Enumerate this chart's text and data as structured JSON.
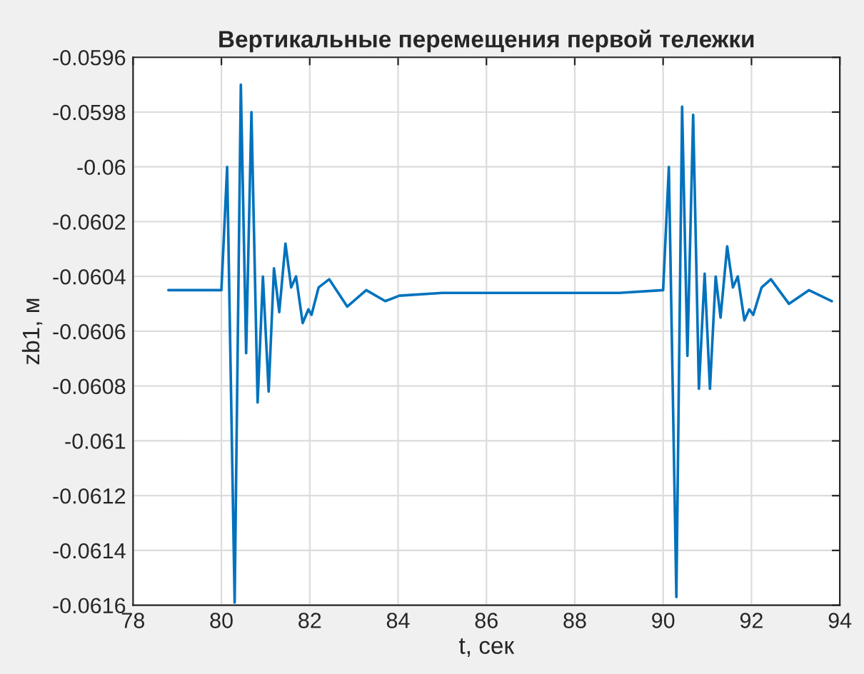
{
  "chart_data": {
    "type": "line",
    "title": "Вертикальные перемещения первой тележки",
    "xlabel": "t, сек",
    "ylabel": "zb1, м",
    "xlim": [
      78,
      94
    ],
    "xticks": [
      78,
      80,
      82,
      84,
      86,
      88,
      90,
      92,
      94
    ],
    "ylim": [
      -0.0616,
      -0.0596
    ],
    "yticks": [
      -0.0616,
      -0.0614,
      -0.0612,
      -0.061,
      -0.0608,
      -0.0606,
      -0.0604,
      -0.0602,
      -0.06,
      -0.0598,
      -0.0596
    ],
    "grid": true,
    "marker": "none",
    "line_style": "solid",
    "series": [
      {
        "color": "#0072bd",
        "x": [
          78.8,
          80.0,
          80.13,
          80.3,
          80.44,
          80.56,
          80.68,
          80.82,
          80.94,
          81.07,
          81.19,
          81.31,
          81.45,
          81.58,
          81.69,
          81.84,
          81.97,
          82.04,
          82.2,
          82.44,
          82.85,
          83.28,
          83.71,
          84.03,
          85.0,
          86.0,
          87.0,
          88.0,
          89.0,
          90.0,
          90.13,
          90.3,
          90.43,
          90.55,
          90.68,
          90.81,
          90.94,
          91.06,
          91.19,
          91.3,
          91.45,
          91.58,
          91.69,
          91.84,
          91.95,
          92.04,
          92.23,
          92.44,
          92.85,
          93.3,
          93.82
        ],
        "values": [
          -0.06045,
          -0.06045,
          -0.06,
          -0.06159,
          -0.0597,
          -0.06068,
          -0.0598,
          -0.06086,
          -0.0604,
          -0.06082,
          -0.06037,
          -0.06053,
          -0.06028,
          -0.06044,
          -0.0604,
          -0.06057,
          -0.06052,
          -0.06054,
          -0.06044,
          -0.06041,
          -0.06051,
          -0.06045,
          -0.06049,
          -0.06047,
          -0.06046,
          -0.06046,
          -0.06046,
          -0.06046,
          -0.06046,
          -0.06045,
          -0.06,
          -0.06157,
          -0.05978,
          -0.06069,
          -0.05981,
          -0.06081,
          -0.06039,
          -0.06081,
          -0.0604,
          -0.06055,
          -0.06029,
          -0.06044,
          -0.0604,
          -0.06056,
          -0.06052,
          -0.06054,
          -0.06044,
          -0.06041,
          -0.0605,
          -0.06045,
          -0.06049
        ]
      }
    ]
  }
}
